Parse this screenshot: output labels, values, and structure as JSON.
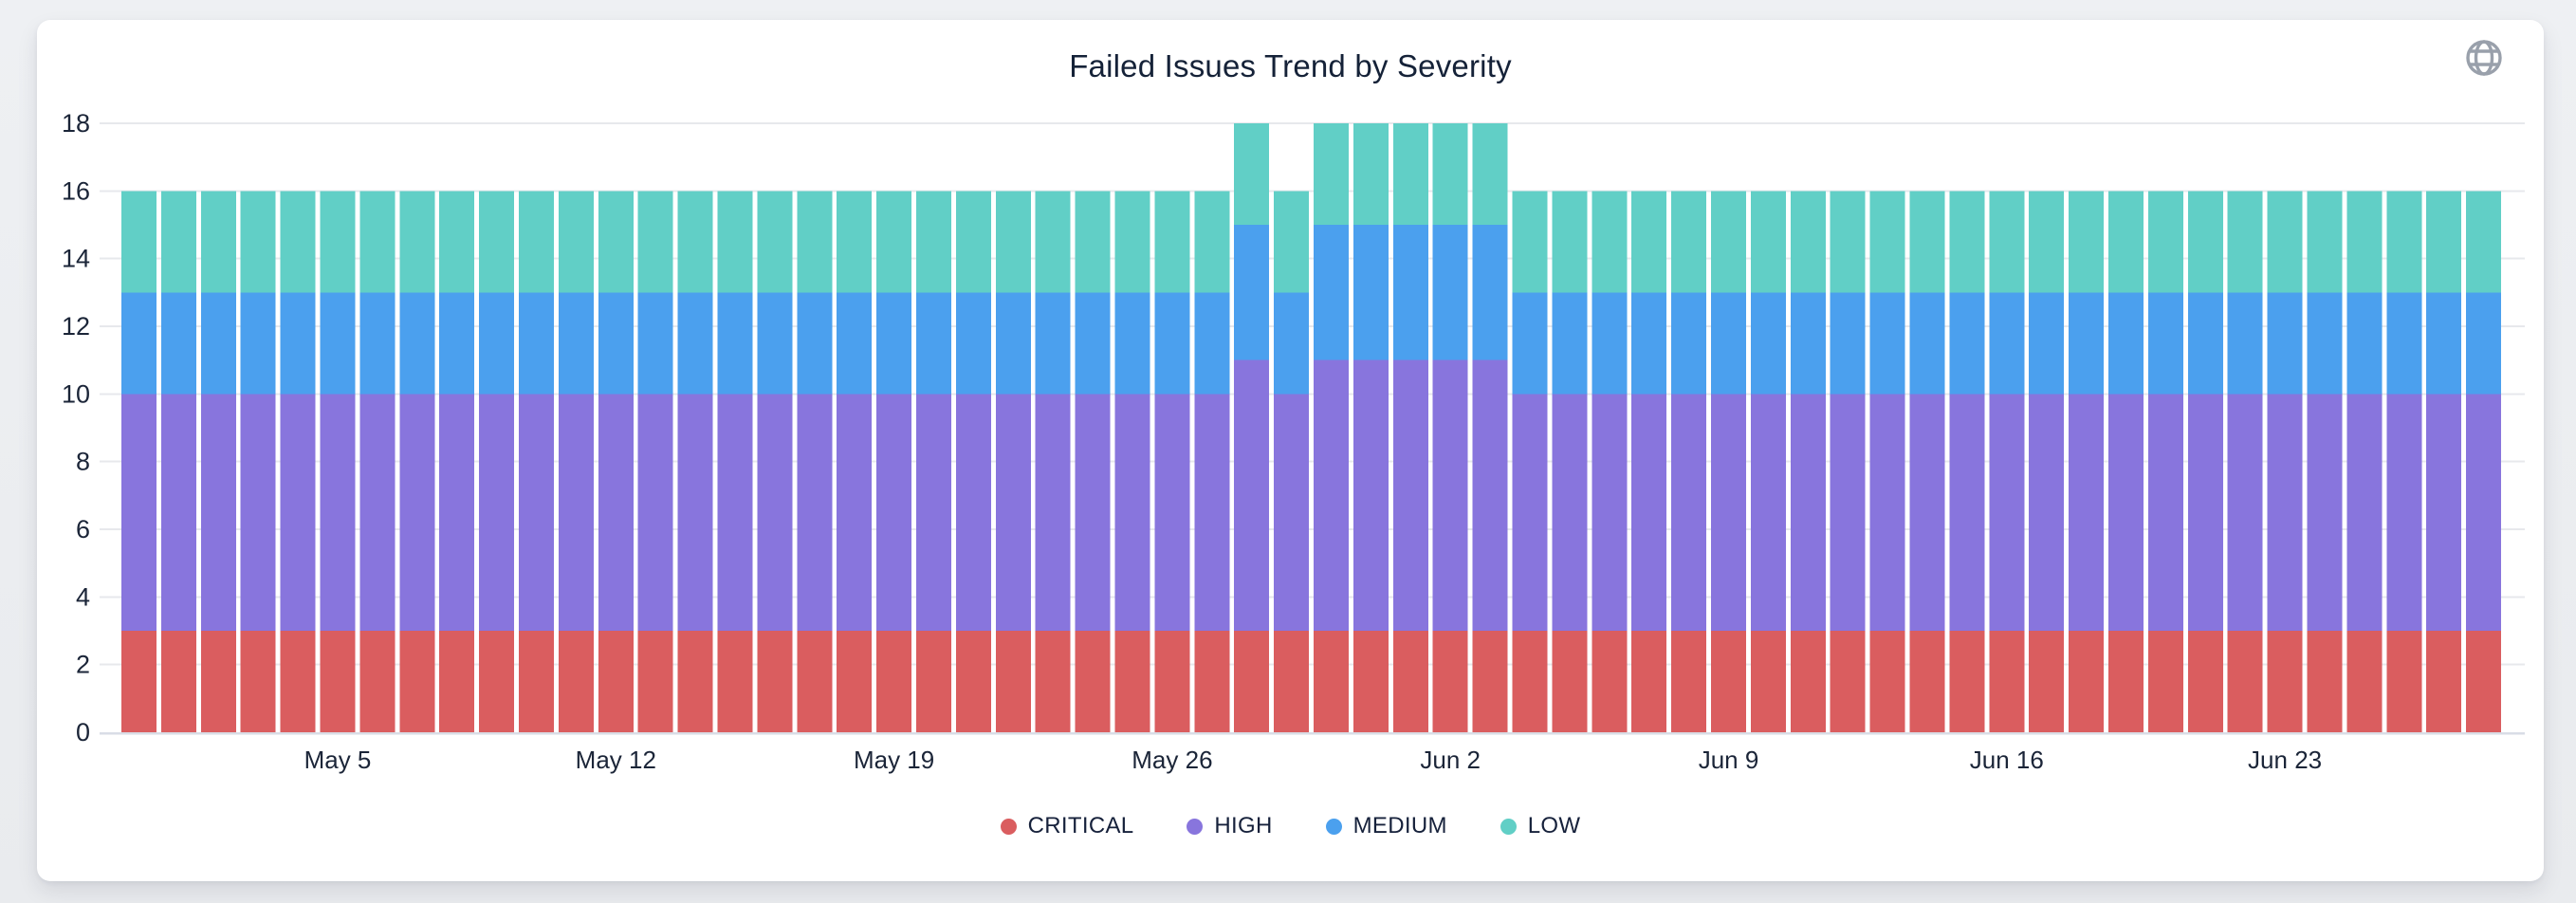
{
  "header": {
    "title": "Failed Issues Trend by Severity",
    "title_color": "#152238",
    "globe_icon": "globe-icon",
    "globe_icon_color": "#99A0AB"
  },
  "colors": {
    "card_background": "#FFFFFF",
    "page_background": "#ECEDF0",
    "grid_line": "#E7E8EC",
    "axis_line": "#D9DDE6",
    "axis_label": "#1B2538",
    "critical": "#DA5D5F",
    "high": "#8875DD",
    "medium": "#4BA0EE",
    "low": "#61CFC6"
  },
  "chart_data": {
    "type": "bar",
    "stacked": true,
    "title": "Failed Issues Trend by Severity",
    "xlabel": "",
    "ylabel": "",
    "ylim": [
      0,
      18
    ],
    "yticks": [
      0,
      2,
      4,
      6,
      8,
      10,
      12,
      14,
      16,
      18
    ],
    "grid": "horizontal",
    "legend_position": "bottom",
    "categories": [
      "Apr 30",
      "May 1",
      "May 2",
      "May 3",
      "May 4",
      "May 5",
      "May 6",
      "May 7",
      "May 8",
      "May 9",
      "May 10",
      "May 11",
      "May 12",
      "May 13",
      "May 14",
      "May 15",
      "May 16",
      "May 17",
      "May 18",
      "May 19",
      "May 20",
      "May 21",
      "May 22",
      "May 23",
      "May 24",
      "May 25",
      "May 26",
      "May 27",
      "May 28",
      "May 29",
      "May 30",
      "May 31",
      "Jun 1",
      "Jun 2",
      "Jun 3",
      "Jun 4",
      "Jun 5",
      "Jun 6",
      "Jun 7",
      "Jun 8",
      "Jun 9",
      "Jun 10",
      "Jun 11",
      "Jun 12",
      "Jun 13",
      "Jun 14",
      "Jun 15",
      "Jun 16",
      "Jun 17",
      "Jun 18",
      "Jun 19",
      "Jun 20",
      "Jun 21",
      "Jun 22",
      "Jun 23",
      "Jun 24",
      "Jun 25",
      "Jun 26",
      "Jun 27",
      "Jun 28"
    ],
    "xticks": [
      {
        "label": "May 5",
        "index": 5
      },
      {
        "label": "May 12",
        "index": 12
      },
      {
        "label": "May 19",
        "index": 19
      },
      {
        "label": "May 26",
        "index": 26
      },
      {
        "label": "Jun 2",
        "index": 33
      },
      {
        "label": "Jun 9",
        "index": 40
      },
      {
        "label": "Jun 16",
        "index": 47
      },
      {
        "label": "Jun 23",
        "index": 54
      }
    ],
    "series": [
      {
        "name": "CRITICAL",
        "color": "#DA5D5F",
        "values": [
          3,
          3,
          3,
          3,
          3,
          3,
          3,
          3,
          3,
          3,
          3,
          3,
          3,
          3,
          3,
          3,
          3,
          3,
          3,
          3,
          3,
          3,
          3,
          3,
          3,
          3,
          3,
          3,
          3,
          3,
          3,
          3,
          3,
          3,
          3,
          3,
          3,
          3,
          3,
          3,
          3,
          3,
          3,
          3,
          3,
          3,
          3,
          3,
          3,
          3,
          3,
          3,
          3,
          3,
          3,
          3,
          3,
          3,
          3,
          3
        ]
      },
      {
        "name": "HIGH",
        "color": "#8875DD",
        "values": [
          7,
          7,
          7,
          7,
          7,
          7,
          7,
          7,
          7,
          7,
          7,
          7,
          7,
          7,
          7,
          7,
          7,
          7,
          7,
          7,
          7,
          7,
          7,
          7,
          7,
          7,
          7,
          7,
          8,
          7,
          8,
          8,
          8,
          8,
          8,
          7,
          7,
          7,
          7,
          7,
          7,
          7,
          7,
          7,
          7,
          7,
          7,
          7,
          7,
          7,
          7,
          7,
          7,
          7,
          7,
          7,
          7,
          7,
          7,
          7
        ]
      },
      {
        "name": "MEDIUM",
        "color": "#4BA0EE",
        "values": [
          3,
          3,
          3,
          3,
          3,
          3,
          3,
          3,
          3,
          3,
          3,
          3,
          3,
          3,
          3,
          3,
          3,
          3,
          3,
          3,
          3,
          3,
          3,
          3,
          3,
          3,
          3,
          3,
          4,
          3,
          4,
          4,
          4,
          4,
          4,
          3,
          3,
          3,
          3,
          3,
          3,
          3,
          3,
          3,
          3,
          3,
          3,
          3,
          3,
          3,
          3,
          3,
          3,
          3,
          3,
          3,
          3,
          3,
          3,
          3
        ]
      },
      {
        "name": "LOW",
        "color": "#61CFC6",
        "values": [
          3,
          3,
          3,
          3,
          3,
          3,
          3,
          3,
          3,
          3,
          3,
          3,
          3,
          3,
          3,
          3,
          3,
          3,
          3,
          3,
          3,
          3,
          3,
          3,
          3,
          3,
          3,
          3,
          3,
          3,
          3,
          3,
          3,
          3,
          3,
          3,
          3,
          3,
          3,
          3,
          3,
          3,
          3,
          3,
          3,
          3,
          3,
          3,
          3,
          3,
          3,
          3,
          3,
          3,
          3,
          3,
          3,
          3,
          3,
          3
        ]
      }
    ]
  }
}
